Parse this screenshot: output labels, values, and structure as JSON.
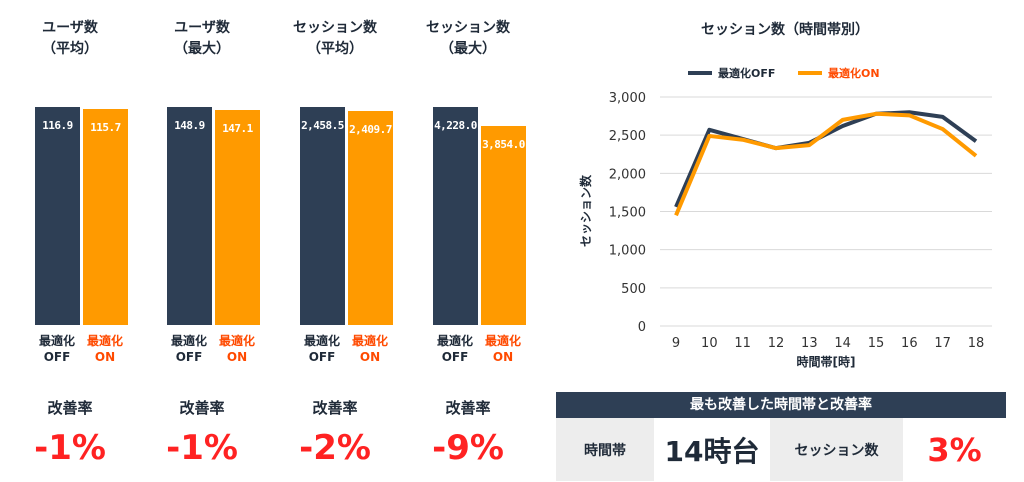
{
  "kpis": [
    {
      "title_line1": "ユーザ数",
      "title_line2": "（平均）",
      "off_value": 116.9,
      "on_value": 115.7,
      "off_display": "116.9",
      "on_display": "115.7",
      "rate_label": "改善率",
      "rate_value": "-1%"
    },
    {
      "title_line1": "ユーザ数",
      "title_line2": "（最大）",
      "off_value": 148.9,
      "on_value": 147.1,
      "off_display": "148.9",
      "on_display": "147.1",
      "rate_label": "改善率",
      "rate_value": "-1%"
    },
    {
      "title_line1": "セッション数",
      "title_line2": "（平均）",
      "off_value": 2458.5,
      "on_value": 2409.7,
      "off_display": "2,458.5",
      "on_display": "2,409.7",
      "rate_label": "改善率",
      "rate_value": "-2%"
    },
    {
      "title_line1": "セッション数",
      "title_line2": "（最大）",
      "off_value": 4228.0,
      "on_value": 3854.0,
      "off_display": "4,228.0",
      "on_display": "3,854.0",
      "rate_label": "改善率",
      "rate_value": "-9%"
    }
  ],
  "bar_labels": {
    "off_line1": "最適化",
    "off_line2": "OFF",
    "on_line1": "最適化",
    "on_line2": "ON"
  },
  "colors": {
    "off": "#2e3f55",
    "on": "#ff9a00",
    "on_text": "#ff4a00",
    "negative": "#ff2222"
  },
  "chart_data": {
    "type": "line",
    "title": "セッション数（時間帯別）",
    "xlabel": "時間帯[時]",
    "ylabel": "セッション数",
    "x": [
      9,
      10,
      11,
      12,
      13,
      14,
      15,
      16,
      17,
      18
    ],
    "ylim": [
      0,
      3000
    ],
    "yticks": [
      0,
      500,
      1000,
      1500,
      2000,
      2500,
      3000
    ],
    "ytick_labels": [
      "0",
      "500",
      "1,000",
      "1,500",
      "2,000",
      "2,500",
      "3,000"
    ],
    "grid": true,
    "legend_position": "top",
    "series": [
      {
        "name": "最適化OFF",
        "color": "#2e3f55",
        "values": [
          1560,
          2570,
          2450,
          2330,
          2400,
          2620,
          2780,
          2800,
          2740,
          2420
        ]
      },
      {
        "name": "最適化ON",
        "color": "#ff9a00",
        "values": [
          1450,
          2490,
          2440,
          2330,
          2370,
          2700,
          2780,
          2760,
          2580,
          2230
        ]
      }
    ]
  },
  "summary": {
    "header": "最も改善した時間帯と改善率",
    "time_label": "時間帯",
    "time_value": "14時台",
    "metric_label": "セッション数",
    "metric_value": "3%"
  }
}
